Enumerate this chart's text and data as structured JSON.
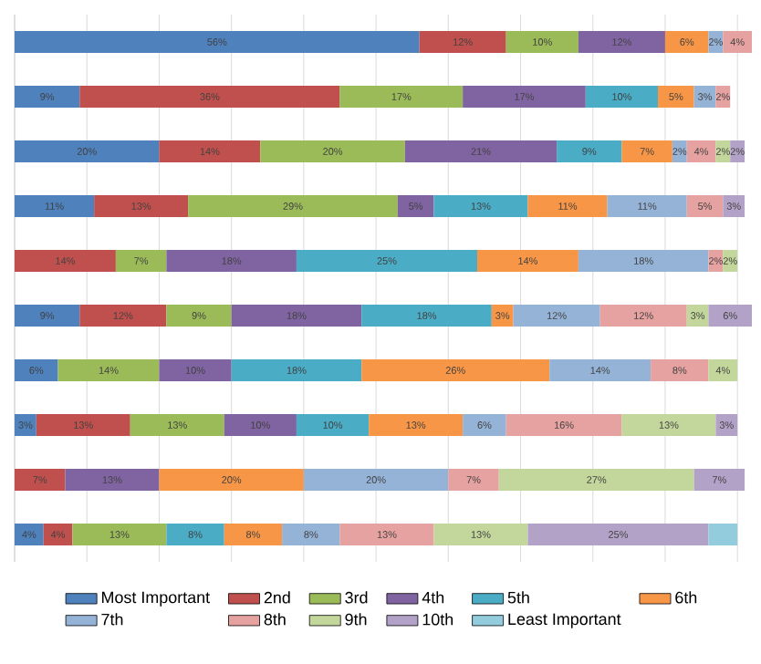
{
  "chart_data": {
    "type": "bar",
    "orientation": "horizontal",
    "stacked": true,
    "legend": "bottom",
    "grid": "x",
    "categories": [
      null,
      null,
      null,
      null,
      null,
      null,
      null,
      null,
      null,
      null
    ],
    "xlim": [
      0,
      102
    ],
    "xticks": [
      {
        "value": 0,
        "label": null
      },
      {
        "value": 10,
        "label": null
      },
      {
        "value": 20,
        "label": null
      },
      {
        "value": 30,
        "label": null
      },
      {
        "value": 40,
        "label": null
      },
      {
        "value": 50,
        "label": null
      },
      {
        "value": 60,
        "label": null
      },
      {
        "value": 70,
        "label": null
      },
      {
        "value": 80,
        "label": null
      },
      {
        "value": 90,
        "label": null
      },
      {
        "value": 100,
        "label": null
      }
    ],
    "series": [
      {
        "name": "Most Important",
        "color": "#4f81bd",
        "values": [
          56,
          9,
          20,
          11,
          null,
          9,
          6,
          3,
          null,
          4
        ],
        "value_labels": [
          "56%",
          "9%",
          "20%",
          "11%",
          null,
          "9%",
          "6%",
          "3%",
          null,
          "4%"
        ]
      },
      {
        "name": "2nd",
        "color": "#c0504d",
        "values": [
          12,
          36,
          14,
          13,
          14,
          12,
          null,
          13,
          7,
          4
        ],
        "value_labels": [
          "12%",
          "36%",
          "14%",
          "13%",
          "14%",
          "12%",
          null,
          "13%",
          "7%",
          "4%"
        ]
      },
      {
        "name": "3rd",
        "color": "#9bbb59",
        "values": [
          10,
          17,
          20,
          29,
          7,
          9,
          14,
          13,
          null,
          13
        ],
        "value_labels": [
          "10%",
          "17%",
          "20%",
          "29%",
          "7%",
          "9%",
          "14%",
          "13%",
          null,
          "13%"
        ]
      },
      {
        "name": "4th",
        "color": "#8064a2",
        "values": [
          12,
          17,
          21,
          5,
          18,
          18,
          10,
          10,
          13,
          null
        ],
        "value_labels": [
          "12%",
          "17%",
          "21%",
          "5%",
          "18%",
          "18%",
          "10%",
          "10%",
          "13%",
          null
        ]
      },
      {
        "name": "5th",
        "color": "#4bacc6",
        "values": [
          null,
          10,
          9,
          13,
          25,
          18,
          18,
          10,
          null,
          8
        ],
        "value_labels": [
          null,
          "10%",
          "9%",
          "13%",
          "25%",
          "18%",
          "18%",
          "10%",
          null,
          "8%"
        ]
      },
      {
        "name": "6th",
        "color": "#f79646",
        "values": [
          6,
          5,
          7,
          11,
          14,
          3,
          26,
          13,
          20,
          8
        ],
        "value_labels": [
          "6%",
          "5%",
          "7%",
          "11%",
          "14%",
          "3%",
          "26%",
          "13%",
          "20%",
          "8%"
        ]
      },
      {
        "name": "7th",
        "color": "#95b3d7",
        "values": [
          2,
          3,
          2,
          11,
          18,
          12,
          14,
          6,
          20,
          8
        ],
        "value_labels": [
          "2%",
          "3%",
          "2%",
          "11%",
          "18%",
          "12%",
          "14%",
          "6%",
          "20%",
          "8%"
        ]
      },
      {
        "name": "8th",
        "color": "#e6a2a0",
        "values": [
          4,
          2,
          4,
          5,
          2,
          12,
          8,
          16,
          7,
          13
        ],
        "value_labels": [
          "4%",
          "2%",
          "4%",
          "5%",
          "2%",
          "12%",
          "8%",
          "16%",
          "7%",
          "13%"
        ]
      },
      {
        "name": "9th",
        "color": "#c3d69b",
        "values": [
          null,
          null,
          2,
          null,
          2,
          3,
          4,
          13,
          27,
          13
        ],
        "value_labels": [
          null,
          null,
          "2%",
          null,
          "2%",
          "3%",
          "4%",
          "13%",
          "27%",
          "13%"
        ]
      },
      {
        "name": "10th",
        "color": "#b3a2c7",
        "values": [
          null,
          null,
          2,
          3,
          null,
          6,
          null,
          3,
          7,
          25
        ],
        "value_labels": [
          null,
          null,
          "2%",
          "3%",
          null,
          "6%",
          null,
          "3%",
          "7%",
          "25%"
        ]
      },
      {
        "name": "Least Important",
        "color": "#93cddd",
        "values": [
          null,
          null,
          null,
          null,
          null,
          null,
          null,
          null,
          null,
          4
        ],
        "value_labels": [
          null,
          null,
          null,
          null,
          null,
          null,
          null,
          null,
          null,
          null
        ]
      }
    ]
  }
}
